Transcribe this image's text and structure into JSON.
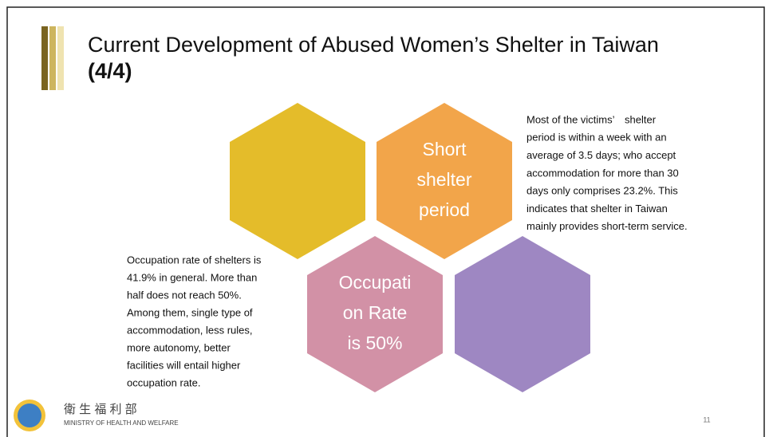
{
  "slide": {
    "title": [
      "Current Development of Abused Women’s Shelter in Taiwan",
      "(4/4)"
    ],
    "hexagons": [
      {
        "lines": []
      },
      {
        "lines": [
          "Short",
          "shelter",
          "period"
        ]
      },
      {
        "lines": [
          "Occupati",
          "on Rate",
          "is 50%"
        ]
      },
      {
        "lines": []
      }
    ],
    "right_text": [
      "Most of the victims’　shelter",
      "period is within a week with an",
      "average of 3.5 days; who accept",
      "accommodation for more than 30",
      "days only comprises 23.2%. This",
      "indicates that shelter in Taiwan",
      "mainly provides short-term service."
    ],
    "left_text": [
      "Occupation rate of shelters is",
      "41.9% in general. More than",
      "half does not reach 50%.",
      "Among them, single type of",
      "accommodation, less rules,",
      "more autonomy, better",
      "facilities will entail higher",
      "occupation rate."
    ],
    "footer": {
      "ministry_zh": "衛 生 福 利 部",
      "ministry_en": "MINISTRY OF HEALTH AND WELFARE",
      "page": "11"
    }
  }
}
